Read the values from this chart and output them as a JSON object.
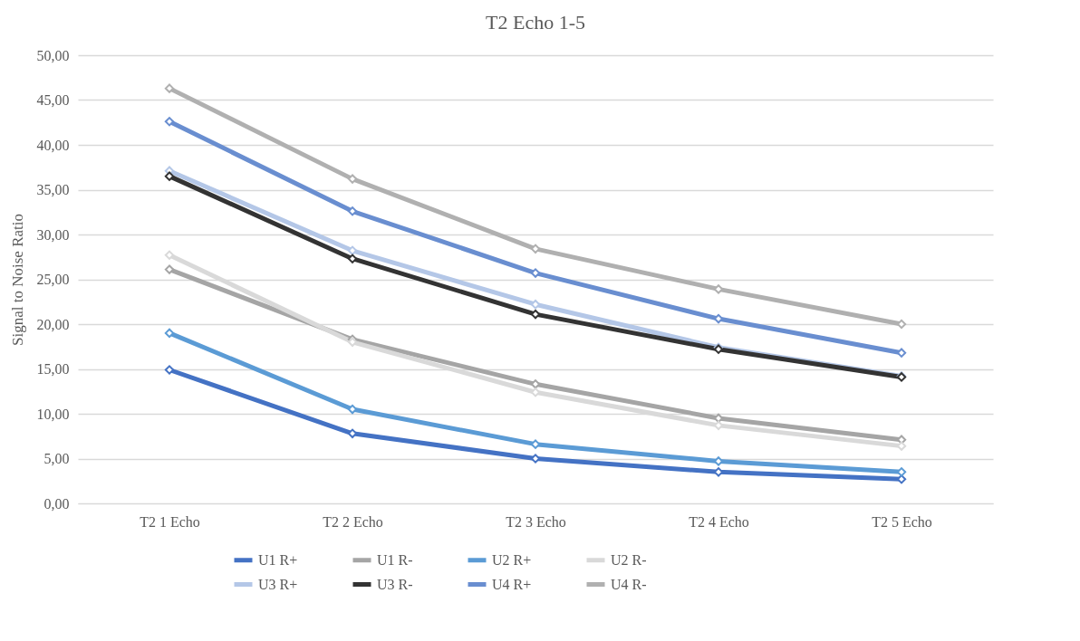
{
  "chart_data": {
    "type": "line",
    "title": "T2 Echo 1-5",
    "ylabel": "Signal to Noise Ratio",
    "categories": [
      "T2 1 Echo",
      "T2 2 Echo",
      "T2 3 Echo",
      "T2 4 Echo",
      "T2 5 Echo"
    ],
    "series": [
      {
        "name": "U1 R+",
        "color": "#4472c4",
        "values": [
          14.9,
          7.8,
          5.0,
          3.5,
          2.7
        ]
      },
      {
        "name": "U1 R-",
        "color": "#a5a5a5",
        "values": [
          26.1,
          18.3,
          13.3,
          9.5,
          7.1
        ]
      },
      {
        "name": "U2 R+",
        "color": "#5b9bd5",
        "values": [
          19.0,
          10.5,
          6.6,
          4.7,
          3.5
        ]
      },
      {
        "name": "U2 R-",
        "color": "#d9d9d9",
        "values": [
          27.7,
          18.0,
          12.4,
          8.7,
          6.4
        ]
      },
      {
        "name": "U3 R+",
        "color": "#b4c7e7",
        "values": [
          37.1,
          28.2,
          22.2,
          17.4,
          14.2
        ]
      },
      {
        "name": "U3 R-",
        "color": "#333333",
        "values": [
          36.5,
          27.3,
          21.1,
          17.2,
          14.1
        ]
      },
      {
        "name": "U4 R+",
        "color": "#698ed0",
        "values": [
          42.6,
          32.6,
          25.7,
          20.6,
          16.8
        ]
      },
      {
        "name": "U4 R-",
        "color": "#b0b0b0",
        "values": [
          46.3,
          36.2,
          28.4,
          23.9,
          20.0
        ]
      }
    ],
    "ylim": [
      0,
      50
    ],
    "yticks": [
      {
        "value": 0,
        "label": "0,00"
      },
      {
        "value": 5,
        "label": "5,00"
      },
      {
        "value": 10,
        "label": "10,00"
      },
      {
        "value": 15,
        "label": "15,00"
      },
      {
        "value": 20,
        "label": "20,00"
      },
      {
        "value": 25,
        "label": "25,00"
      },
      {
        "value": 30,
        "label": "30,00"
      },
      {
        "value": 35,
        "label": "35,00"
      },
      {
        "value": 40,
        "label": "40,00"
      },
      {
        "value": 45,
        "label": "45,00"
      },
      {
        "value": 50,
        "label": "50,00"
      }
    ],
    "grid": "y",
    "legend": "bottom",
    "marker": "diamond",
    "line_style": "solid"
  }
}
